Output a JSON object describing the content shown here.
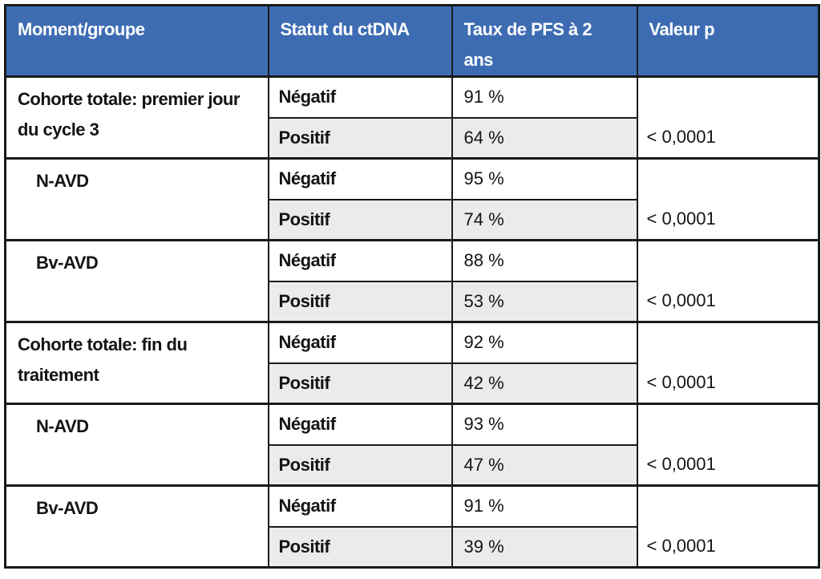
{
  "colors": {
    "header_bg": "#3d6cb3",
    "header_text": "#ffffff",
    "row_bg": "#ffffff",
    "row_alt_bg": "#ebebeb",
    "border": "#1a1a1a",
    "body_text": "#141414"
  },
  "table": {
    "headers": [
      {
        "label": "Moment/groupe"
      },
      {
        "label": "Statut du ctDNA"
      },
      {
        "label": "Taux de PFS à 2 ans"
      },
      {
        "label": "Valeur p"
      }
    ],
    "groups": [
      {
        "label": "Cohorte totale: premier jour du cycle 3",
        "rows": [
          {
            "status": "Négatif",
            "rate": "91 %"
          },
          {
            "status": "Positif",
            "rate": "64 %"
          }
        ],
        "p_value": "< 0,0001"
      },
      {
        "label": "N-AVD",
        "rows": [
          {
            "status": "Négatif",
            "rate": "95 %"
          },
          {
            "status": "Positif",
            "rate": "74 %"
          }
        ],
        "p_value": "< 0,0001"
      },
      {
        "label": "Bv-AVD",
        "rows": [
          {
            "status": "Négatif",
            "rate": "88 %"
          },
          {
            "status": "Positif",
            "rate": "53 %"
          }
        ],
        "p_value": "< 0,0001"
      },
      {
        "label": "Cohorte totale: fin du traitement",
        "rows": [
          {
            "status": "Négatif",
            "rate": "92 %"
          },
          {
            "status": "Positif",
            "rate": "42 %"
          }
        ],
        "p_value": "< 0,0001"
      },
      {
        "label": "N-AVD",
        "rows": [
          {
            "status": "Négatif",
            "rate": "93 %"
          },
          {
            "status": "Positif",
            "rate": "47 %"
          }
        ],
        "p_value": "< 0,0001"
      },
      {
        "label": "Bv-AVD",
        "rows": [
          {
            "status": "Négatif",
            "rate": "91 %"
          },
          {
            "status": "Positif",
            "rate": "39 %"
          }
        ],
        "p_value": "< 0,0001"
      }
    ]
  },
  "chart_data": {
    "type": "table",
    "columns": [
      "Moment/groupe",
      "Statut du ctDNA",
      "Taux de PFS à 2 ans",
      "Valeur p"
    ],
    "rows": [
      {
        "moment_groupe": "Cohorte totale: premier jour du cycle 3",
        "statut_ctdna": "Négatif",
        "taux_pfs_2_ans_pct": 91,
        "valeur_p": "< 0,0001"
      },
      {
        "moment_groupe": "Cohorte totale: premier jour du cycle 3",
        "statut_ctdna": "Positif",
        "taux_pfs_2_ans_pct": 64,
        "valeur_p": "< 0,0001"
      },
      {
        "moment_groupe": "N-AVD (premier jour du cycle 3)",
        "statut_ctdna": "Négatif",
        "taux_pfs_2_ans_pct": 95,
        "valeur_p": "< 0,0001"
      },
      {
        "moment_groupe": "N-AVD (premier jour du cycle 3)",
        "statut_ctdna": "Positif",
        "taux_pfs_2_ans_pct": 74,
        "valeur_p": "< 0,0001"
      },
      {
        "moment_groupe": "Bv-AVD (premier jour du cycle 3)",
        "statut_ctdna": "Négatif",
        "taux_pfs_2_ans_pct": 88,
        "valeur_p": "< 0,0001"
      },
      {
        "moment_groupe": "Bv-AVD (premier jour du cycle 3)",
        "statut_ctdna": "Positif",
        "taux_pfs_2_ans_pct": 53,
        "valeur_p": "< 0,0001"
      },
      {
        "moment_groupe": "Cohorte totale: fin du traitement",
        "statut_ctdna": "Négatif",
        "taux_pfs_2_ans_pct": 92,
        "valeur_p": "< 0,0001"
      },
      {
        "moment_groupe": "Cohorte totale: fin du traitement",
        "statut_ctdna": "Positif",
        "taux_pfs_2_ans_pct": 42,
        "valeur_p": "< 0,0001"
      },
      {
        "moment_groupe": "N-AVD (fin du traitement)",
        "statut_ctdna": "Négatif",
        "taux_pfs_2_ans_pct": 93,
        "valeur_p": "< 0,0001"
      },
      {
        "moment_groupe": "N-AVD (fin du traitement)",
        "statut_ctdna": "Positif",
        "taux_pfs_2_ans_pct": 47,
        "valeur_p": "< 0,0001"
      },
      {
        "moment_groupe": "Bv-AVD (fin du traitement)",
        "statut_ctdna": "Négatif",
        "taux_pfs_2_ans_pct": 91,
        "valeur_p": "< 0,0001"
      },
      {
        "moment_groupe": "Bv-AVD (fin du traitement)",
        "statut_ctdna": "Positif",
        "taux_pfs_2_ans_pct": 39,
        "valeur_p": "< 0,0001"
      }
    ]
  }
}
